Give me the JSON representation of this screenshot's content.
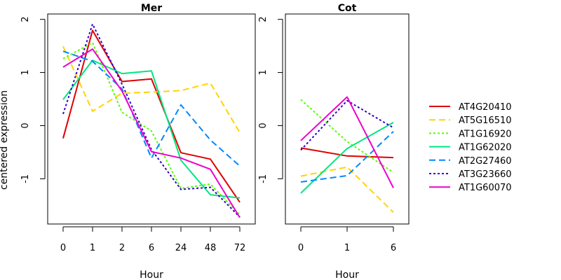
{
  "ylabel": "centered expression",
  "legend": {
    "position": "right",
    "entries": [
      {
        "name": "AT4G20410",
        "color": "#DF0000",
        "dash": "solid"
      },
      {
        "name": "AT5G16510",
        "color": "#FFD400",
        "dash": "dashed"
      },
      {
        "name": "AT1G16920",
        "color": "#55FF00",
        "dash": "dotted"
      },
      {
        "name": "AT1G62020",
        "color": "#00E680",
        "dash": "solid"
      },
      {
        "name": "AT2G27460",
        "color": "#0088FF",
        "dash": "dashed"
      },
      {
        "name": "AT3G23660",
        "color": "#3300CC",
        "dash": "dotted"
      },
      {
        "name": "AT1G60070",
        "color": "#EE00CC",
        "dash": "solid"
      }
    ]
  },
  "chart_data": [
    {
      "type": "line",
      "title": "Mer",
      "xlabel": "Hour",
      "ylabel": "centered expression",
      "categories": [
        "0",
        "1",
        "2",
        "6",
        "24",
        "48",
        "72"
      ],
      "ylim": [
        -1.85,
        2.1
      ],
      "yticks": [
        -1,
        0,
        1,
        2
      ],
      "grid": false,
      "series": [
        {
          "name": "AT4G20410",
          "values": [
            -0.24,
            1.79,
            0.83,
            0.88,
            -0.51,
            -0.63,
            -1.44
          ]
        },
        {
          "name": "AT5G16510",
          "values": [
            1.49,
            0.27,
            0.61,
            0.63,
            0.66,
            0.8,
            -0.13
          ]
        },
        {
          "name": "AT1G16920",
          "values": [
            1.26,
            1.56,
            0.25,
            -0.1,
            -1.18,
            -1.1,
            -1.68
          ]
        },
        {
          "name": "AT1G62020",
          "values": [
            0.49,
            1.23,
            0.98,
            1.03,
            -0.65,
            -1.3,
            -1.36
          ]
        },
        {
          "name": "AT2G27460",
          "values": [
            1.4,
            1.21,
            0.69,
            -0.61,
            0.39,
            -0.27,
            -0.76
          ]
        },
        {
          "name": "AT3G23660",
          "values": [
            0.22,
            1.91,
            0.78,
            -0.45,
            -1.2,
            -1.16,
            -1.72
          ]
        },
        {
          "name": "AT1G60070",
          "values": [
            1.1,
            1.44,
            0.65,
            -0.49,
            -0.61,
            -0.82,
            -1.73
          ]
        }
      ]
    },
    {
      "type": "line",
      "title": "Cot",
      "xlabel": "Hour",
      "categories": [
        "0",
        "1",
        "6"
      ],
      "ylim": [
        -1.85,
        2.1
      ],
      "yticks": [
        -1,
        0,
        1,
        2
      ],
      "grid": false,
      "series": [
        {
          "name": "AT4G20410",
          "values": [
            -0.42,
            -0.57,
            -0.6
          ]
        },
        {
          "name": "AT5G16510",
          "values": [
            -0.95,
            -0.78,
            -1.63
          ]
        },
        {
          "name": "AT1G16920",
          "values": [
            0.49,
            -0.3,
            -0.88
          ]
        },
        {
          "name": "AT1G62020",
          "values": [
            -1.27,
            -0.43,
            0.06
          ]
        },
        {
          "name": "AT2G27460",
          "values": [
            -1.06,
            -0.94,
            -0.11
          ]
        },
        {
          "name": "AT3G23660",
          "values": [
            -0.46,
            0.47,
            -0.04
          ]
        },
        {
          "name": "AT1G60070",
          "values": [
            -0.28,
            0.54,
            -1.17
          ]
        }
      ]
    }
  ]
}
